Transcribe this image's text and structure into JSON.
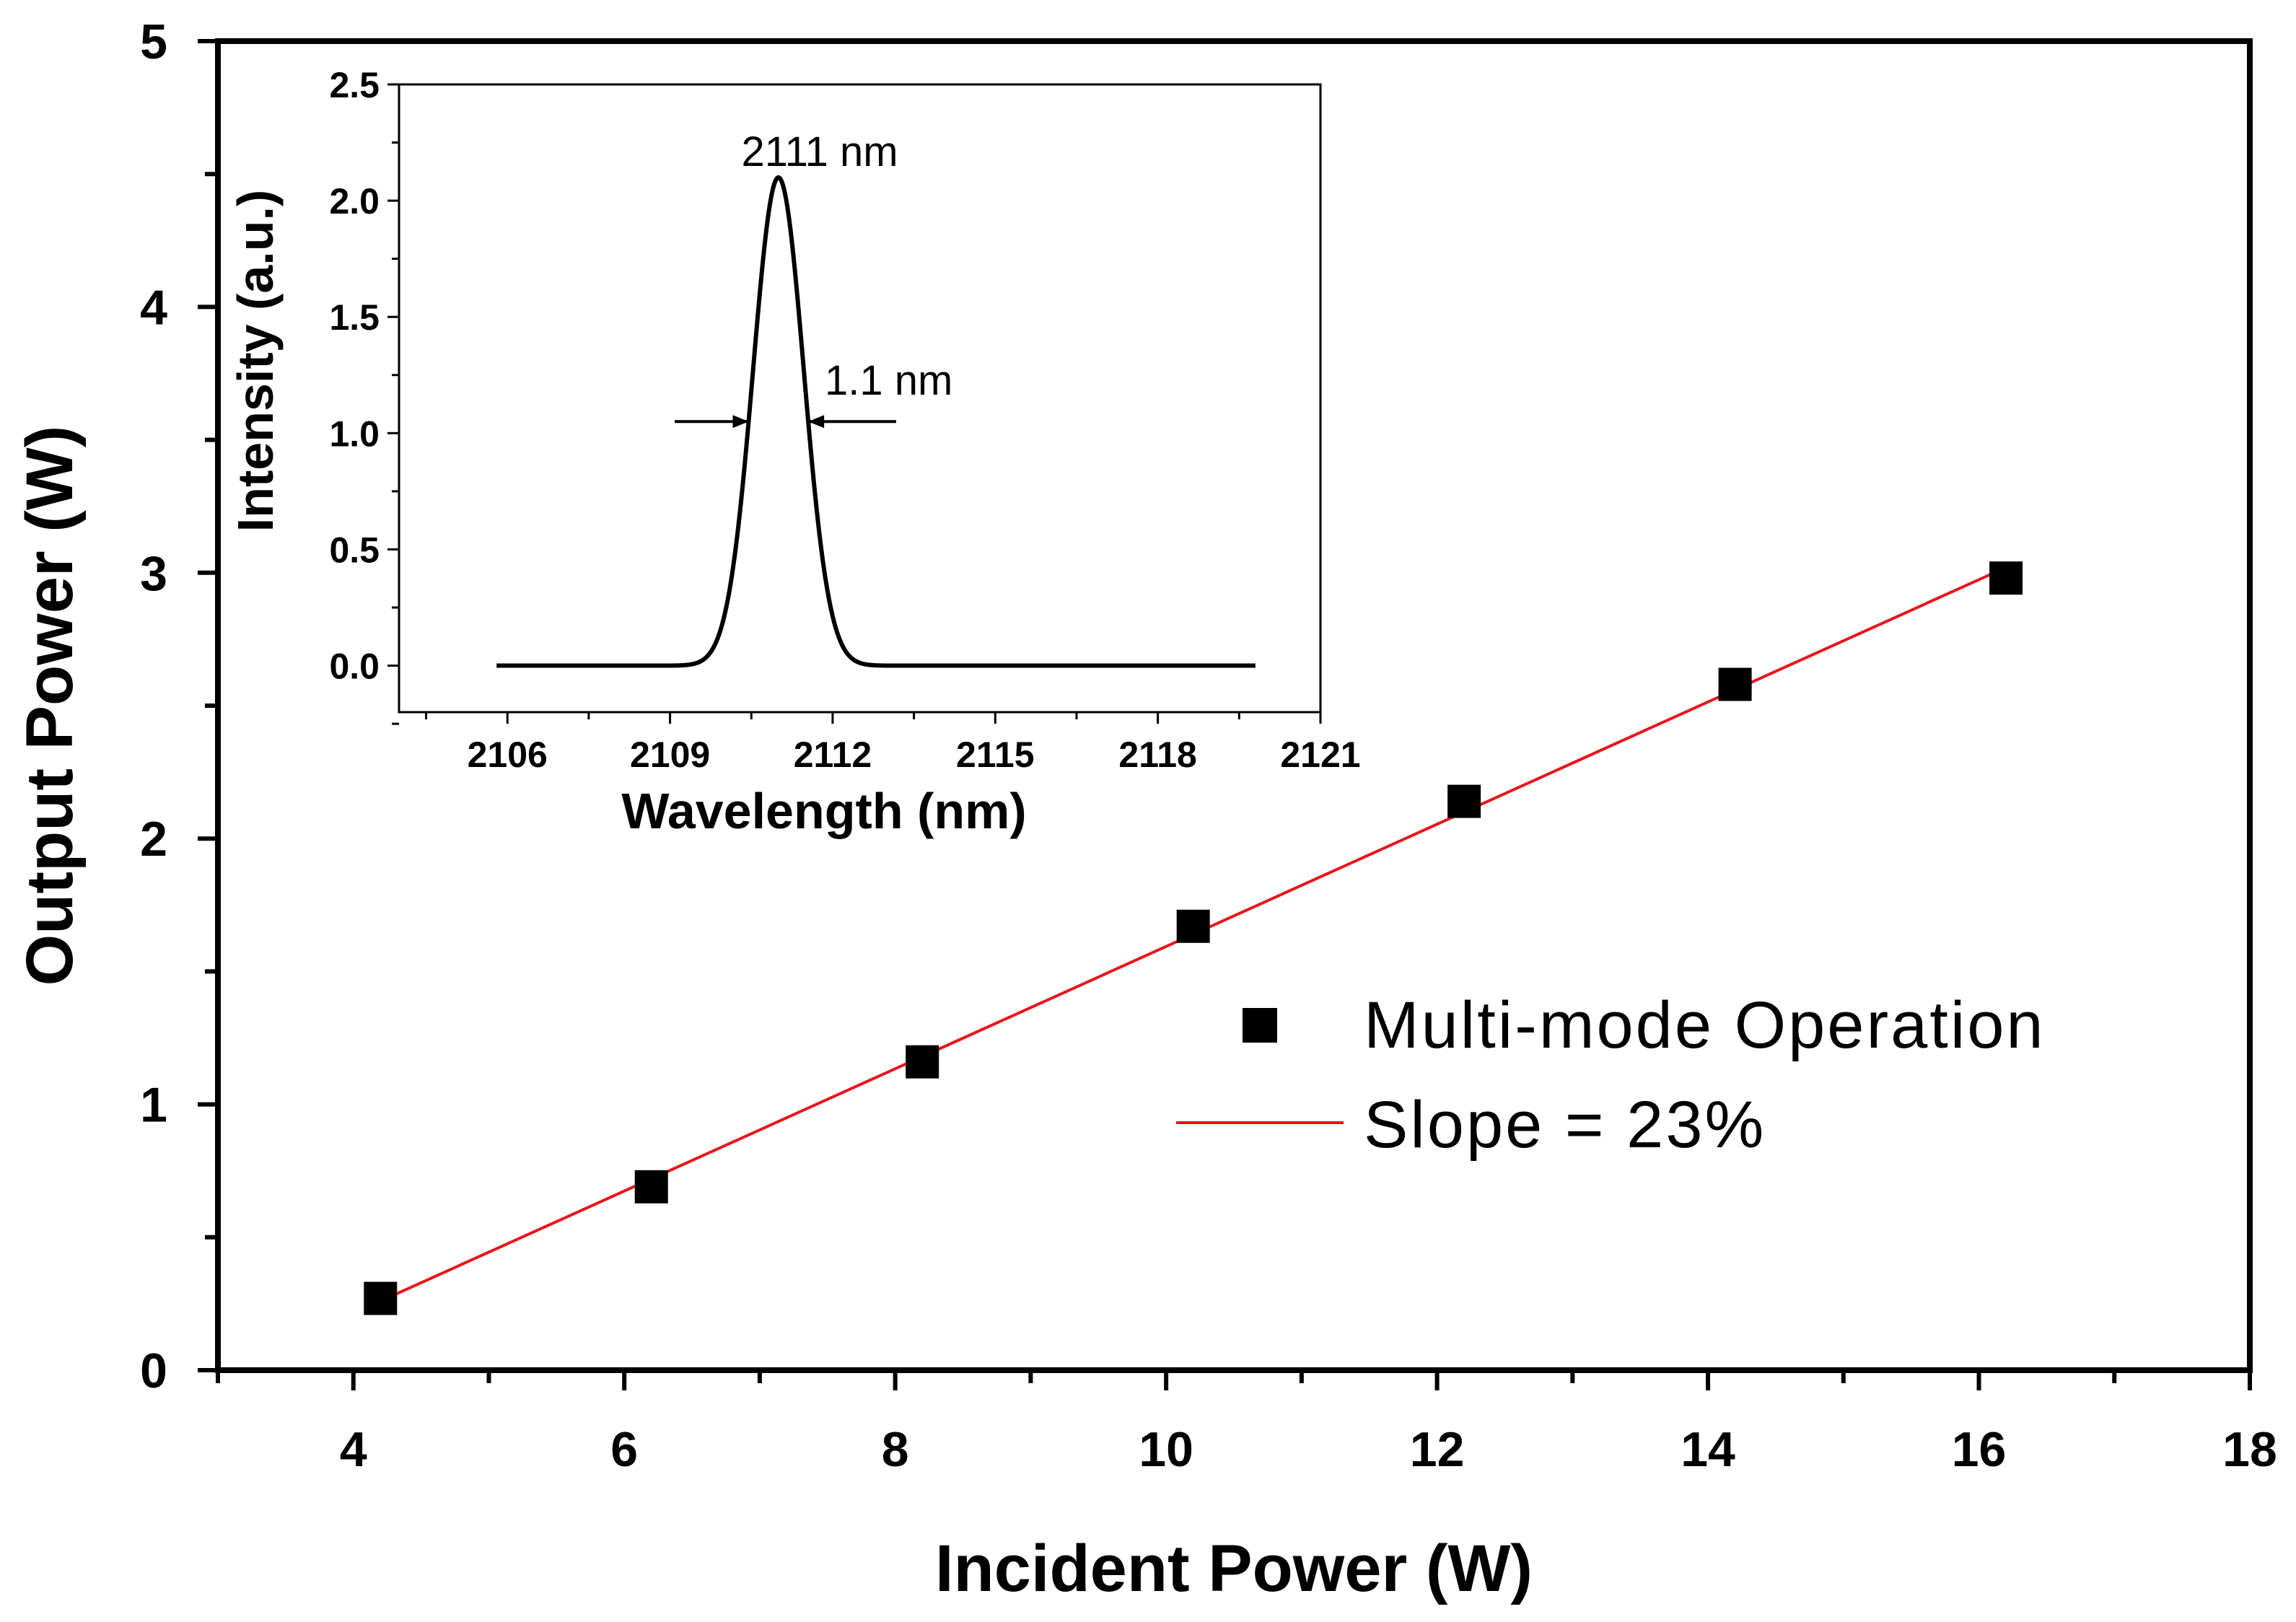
{
  "chart_data": [
    {
      "type": "scatter",
      "title": "",
      "xlabel": "Incident Power (W)",
      "ylabel": "Output Power (W)",
      "xlim": [
        3,
        18
      ],
      "ylim": [
        0,
        5
      ],
      "x_ticks": [
        4,
        6,
        8,
        10,
        12,
        14,
        16,
        18
      ],
      "y_ticks": [
        0,
        1,
        2,
        3,
        4,
        5
      ],
      "x_tick_labels": [
        "4",
        "6",
        "8",
        "10",
        "12",
        "14",
        "16",
        "18"
      ],
      "y_tick_labels": [
        "0",
        "1",
        "2",
        "3",
        "4",
        "5"
      ],
      "series": [
        {
          "name": "Multi-mode Operation",
          "marker": "square",
          "color": "#000000",
          "x": [
            4.2,
            6.2,
            8.2,
            10.2,
            12.2,
            14.2,
            16.2
          ],
          "y": [
            0.27,
            0.69,
            1.16,
            1.67,
            2.14,
            2.58,
            2.98
          ]
        },
        {
          "name": "Slope = 23%",
          "type": "line",
          "color": "#e8141c",
          "x": [
            4.2,
            16.2
          ],
          "y": [
            0.26,
            3.02
          ]
        }
      ],
      "legend_position": "right"
    },
    {
      "type": "line",
      "title": "",
      "xlabel": "Wavelength (nm)",
      "ylabel": "Intensity (a.u.)",
      "xlim": [
        2104,
        2121
      ],
      "ylim": [
        -0.2,
        2.5
      ],
      "x_ticks": [
        2106,
        2109,
        2112,
        2115,
        2118,
        2121
      ],
      "y_ticks": [
        0.0,
        0.5,
        1.0,
        1.5,
        2.0,
        2.5
      ],
      "x_tick_labels": [
        "2106",
        "2109",
        "2112",
        "2115",
        "2118",
        "2121"
      ],
      "y_tick_labels": [
        "0.0",
        "0.5",
        "1.0",
        "1.5",
        "2.0",
        "2.5"
      ],
      "series": [
        {
          "name": "spectrum",
          "color": "#000000",
          "center": 2111.0,
          "fwhm": 1.1,
          "peak": 2.1,
          "baseline": 0.0,
          "x_start": 2105.8,
          "x_end": 2119.8
        }
      ],
      "annotations": [
        {
          "text": "2111 nm"
        },
        {
          "text": "1.1 nm"
        }
      ]
    }
  ]
}
